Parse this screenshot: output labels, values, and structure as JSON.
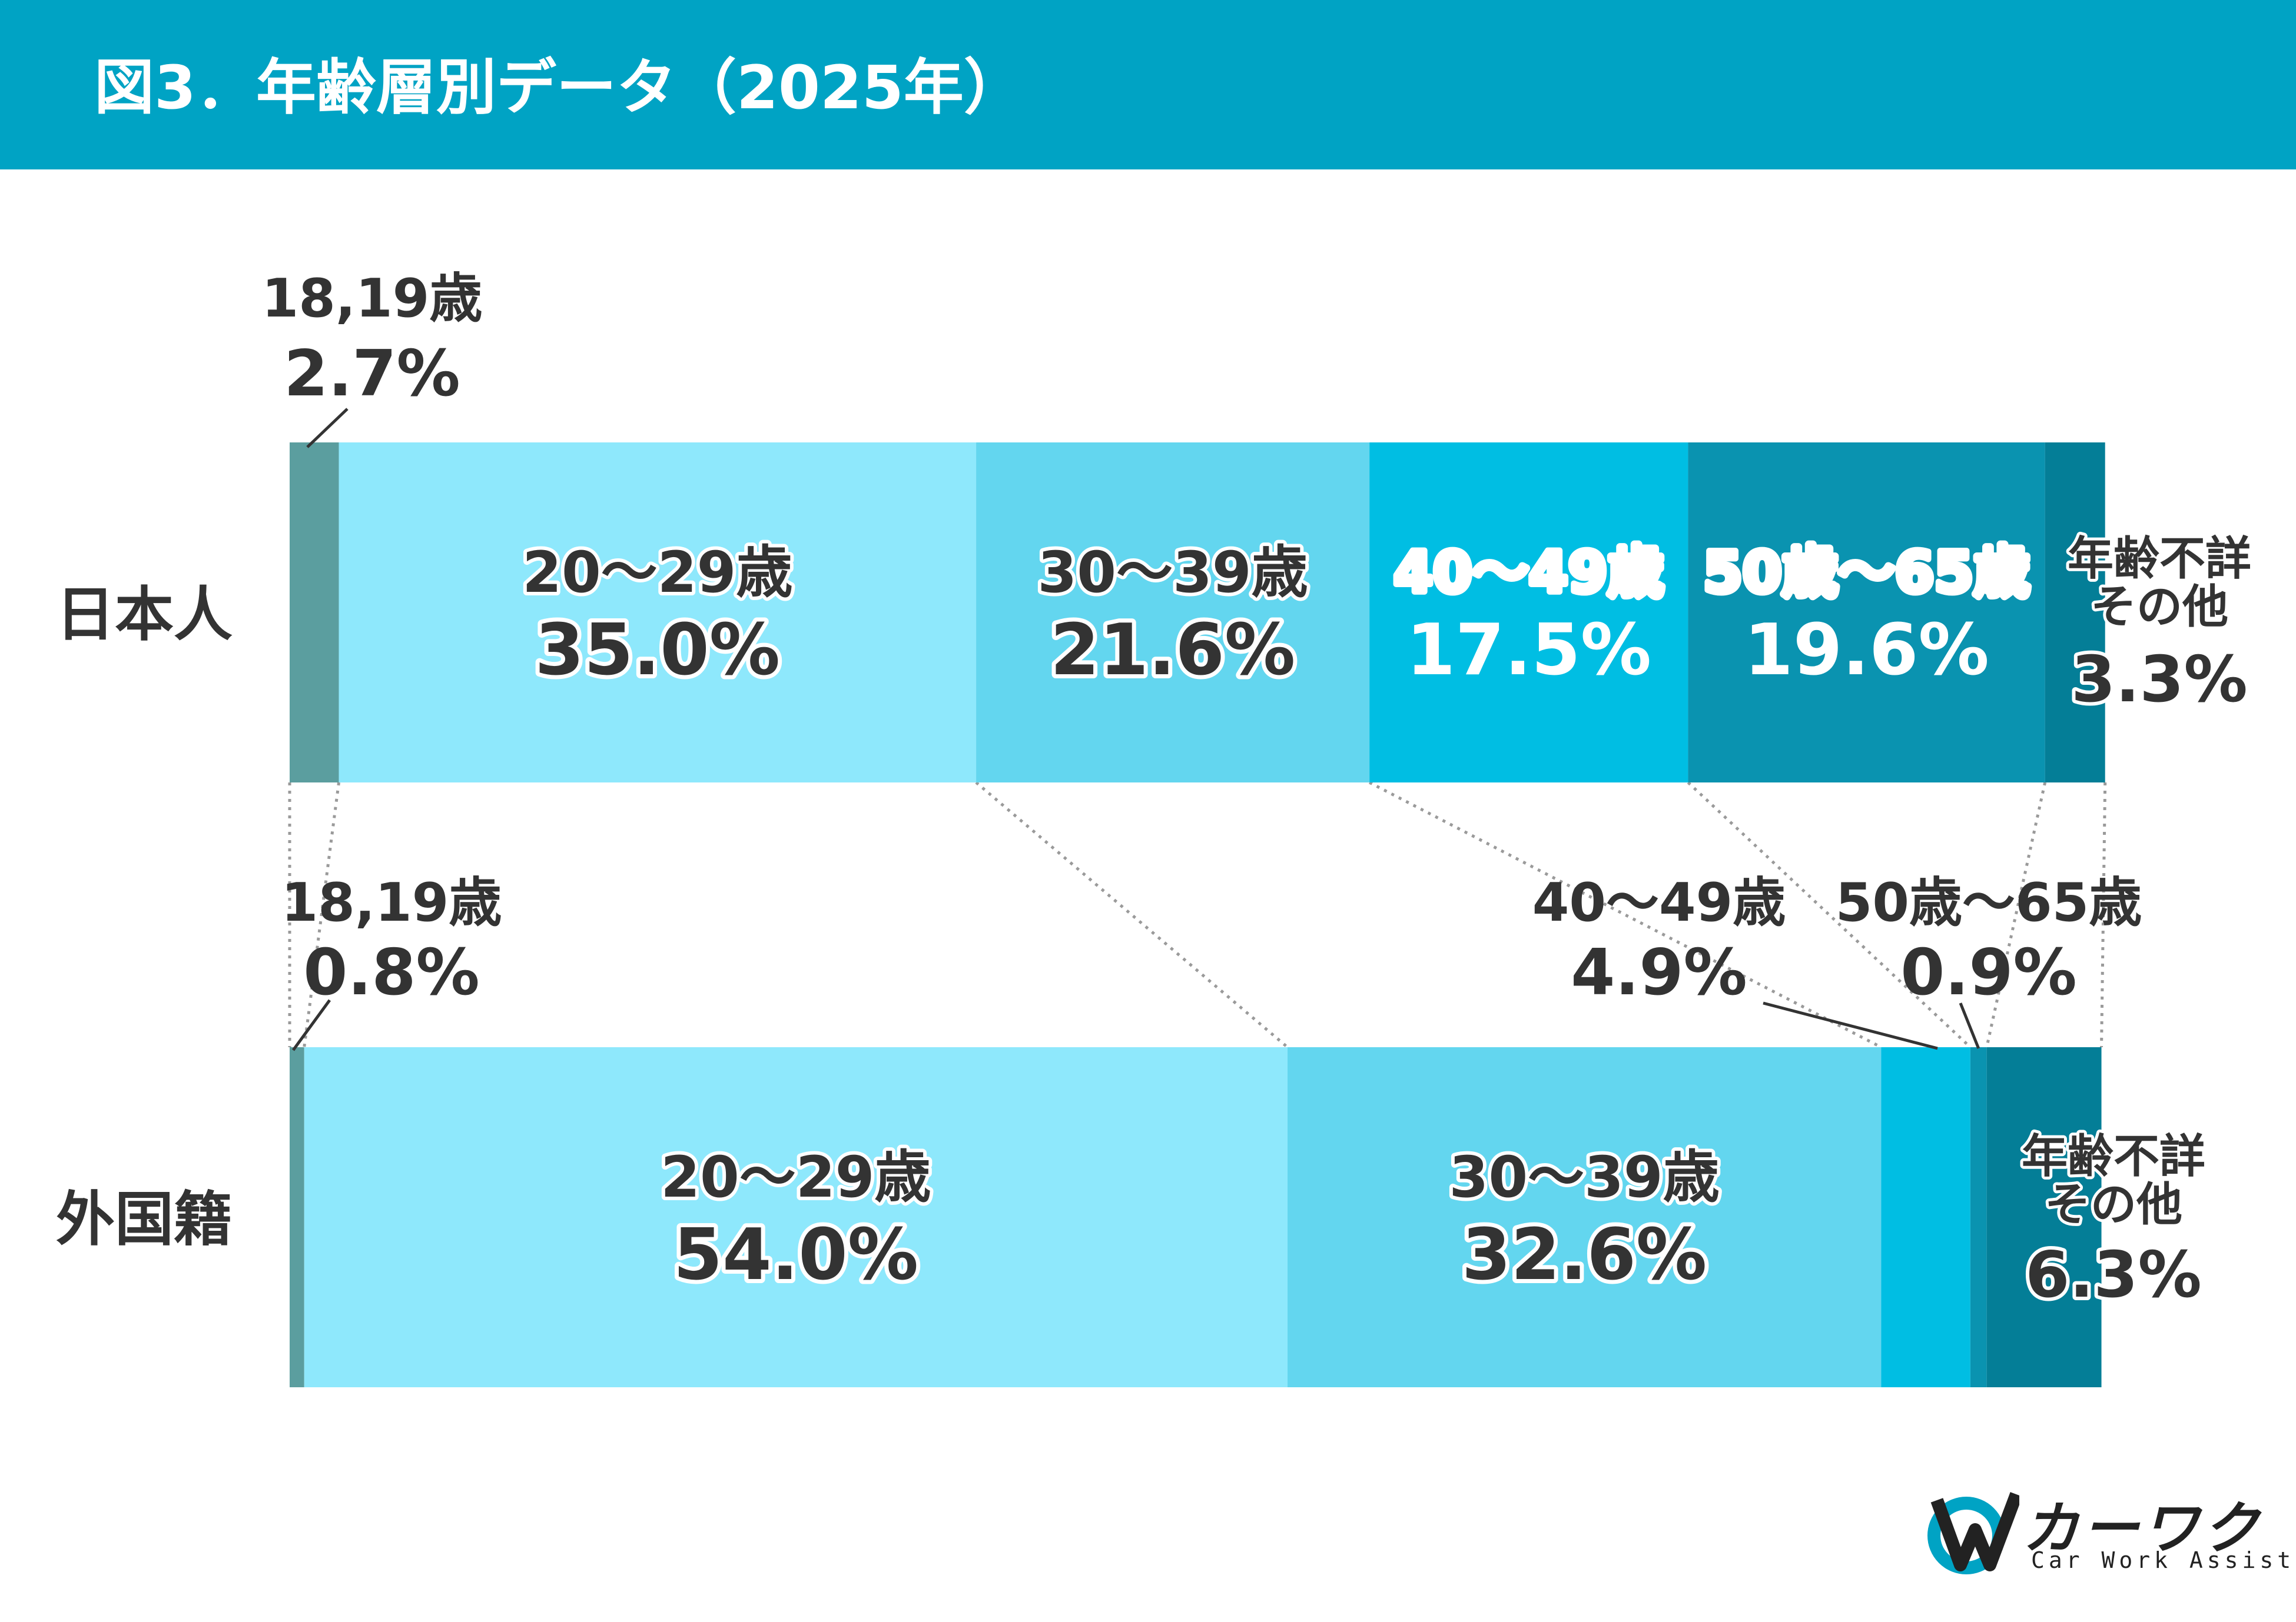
{
  "title": "図3．年齢層別データ（2025年）",
  "colors": {
    "header": "#00A3C4",
    "seg_18_19": "#5B9E9F",
    "seg_20_29": "#8EE8FC",
    "seg_30_39": "#63D6EF",
    "seg_40_49": "#00BEE3",
    "seg_50_65": "#0A93B0",
    "seg_other": "#047E97",
    "label_dark": "#333333",
    "label_white": "#ffffff"
  },
  "chart_data": {
    "type": "bar",
    "orientation": "horizontal",
    "stacked": "100%",
    "categories": [
      "日本人",
      "外国籍"
    ],
    "series": [
      {
        "name": "18,19歳",
        "values": [
          2.7,
          0.8
        ],
        "labels": [
          "2.7%",
          "0.8%"
        ]
      },
      {
        "name": "20～29歳",
        "values": [
          35.0,
          54.0
        ],
        "labels": [
          "35.0%",
          "54.0%"
        ]
      },
      {
        "name": "30～39歳",
        "values": [
          21.6,
          32.6
        ],
        "labels": [
          "21.6%",
          "32.6%"
        ]
      },
      {
        "name": "40～49歳",
        "values": [
          17.5,
          4.9
        ],
        "labels": [
          "17.5%",
          "4.9%"
        ]
      },
      {
        "name": "50歳～65歳",
        "values": [
          19.6,
          0.9
        ],
        "labels": [
          "19.6%",
          "0.9%"
        ]
      },
      {
        "name_lines": [
          "年齢不詳",
          "その他"
        ],
        "values": [
          3.3,
          6.3
        ],
        "labels": [
          "3.3%",
          "6.3%"
        ]
      }
    ]
  },
  "logo": {
    "name": "カーワク",
    "sub": "Car Work Assist"
  }
}
